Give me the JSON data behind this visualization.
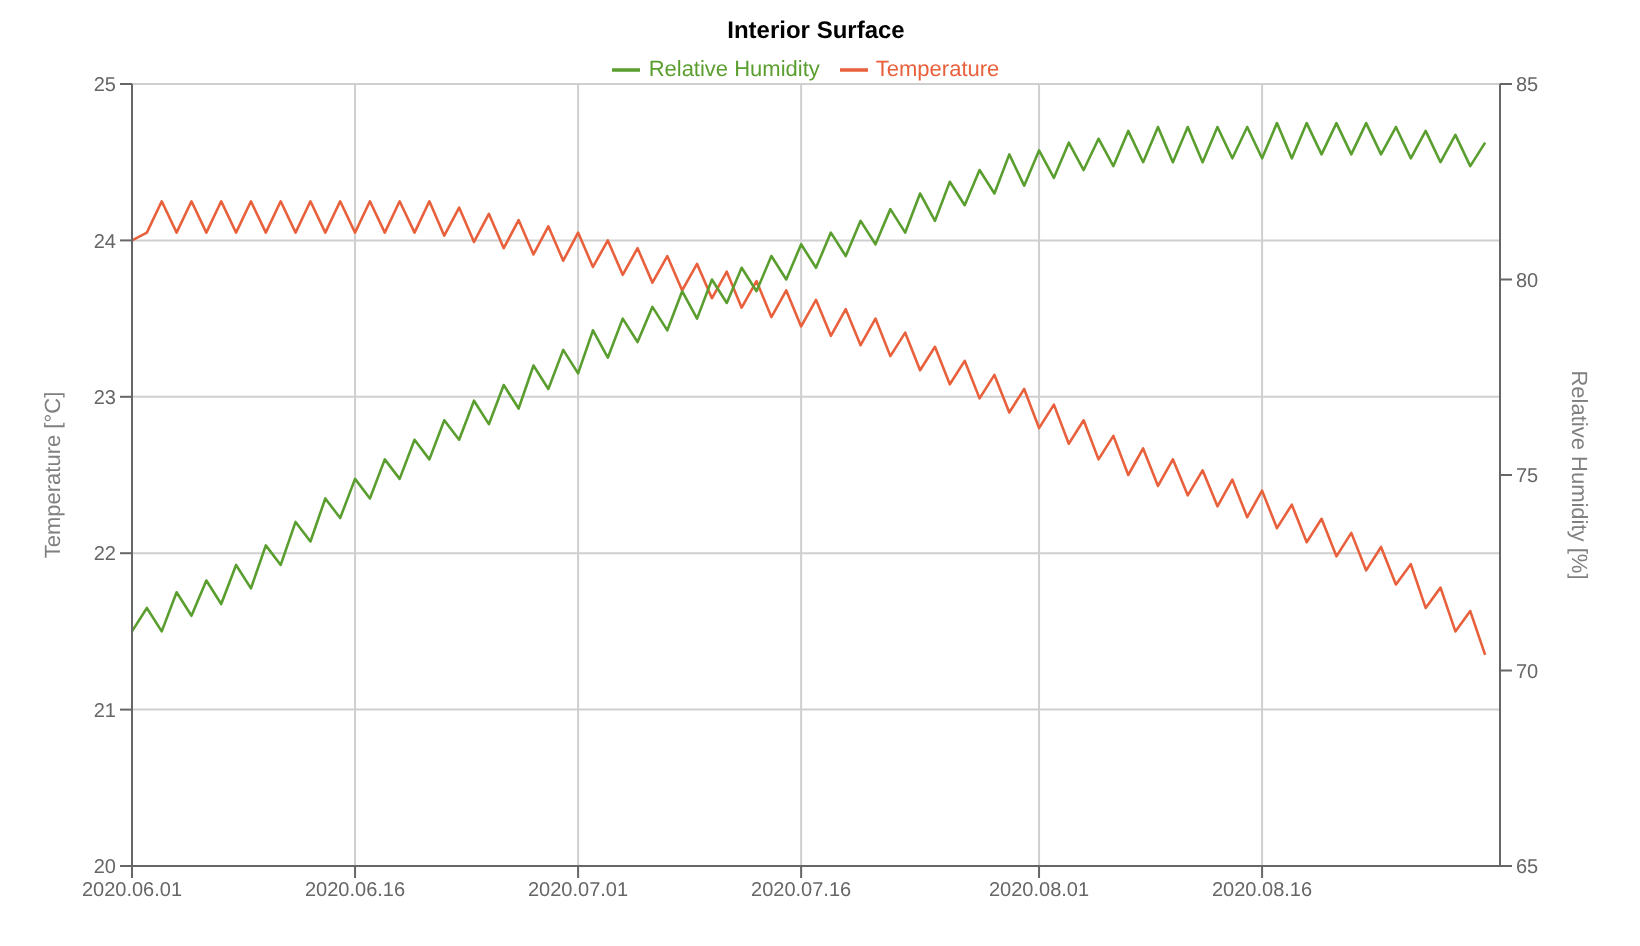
{
  "chart_data": {
    "type": "line",
    "title": "Interior Surface",
    "ylabel": "Temperature [°C]",
    "y2label": "Relative Humidity [%]",
    "x": [
      "2020-06-01",
      "2020-06-02",
      "2020-06-03",
      "2020-06-04",
      "2020-06-05",
      "2020-06-06",
      "2020-06-07",
      "2020-06-08",
      "2020-06-09",
      "2020-06-10",
      "2020-06-11",
      "2020-06-12",
      "2020-06-13",
      "2020-06-14",
      "2020-06-15",
      "2020-06-16",
      "2020-06-17",
      "2020-06-18",
      "2020-06-19",
      "2020-06-20",
      "2020-06-21",
      "2020-06-22",
      "2020-06-23",
      "2020-06-24",
      "2020-06-25",
      "2020-06-26",
      "2020-06-27",
      "2020-06-28",
      "2020-06-29",
      "2020-06-30",
      "2020-07-01",
      "2020-07-02",
      "2020-07-03",
      "2020-07-04",
      "2020-07-05",
      "2020-07-06",
      "2020-07-07",
      "2020-07-08",
      "2020-07-09",
      "2020-07-10",
      "2020-07-11",
      "2020-07-12",
      "2020-07-13",
      "2020-07-14",
      "2020-07-15",
      "2020-07-16",
      "2020-07-17",
      "2020-07-18",
      "2020-07-19",
      "2020-07-20",
      "2020-07-21",
      "2020-07-22",
      "2020-07-23",
      "2020-07-24",
      "2020-07-25",
      "2020-07-26",
      "2020-07-27",
      "2020-07-28",
      "2020-07-29",
      "2020-07-30",
      "2020-07-31",
      "2020-08-01",
      "2020-08-02",
      "2020-08-03",
      "2020-08-04",
      "2020-08-05",
      "2020-08-06",
      "2020-08-07",
      "2020-08-08",
      "2020-08-09",
      "2020-08-10",
      "2020-08-11",
      "2020-08-12",
      "2020-08-13",
      "2020-08-14",
      "2020-08-15",
      "2020-08-16",
      "2020-08-17",
      "2020-08-18",
      "2020-08-19",
      "2020-08-20",
      "2020-08-21",
      "2020-08-22",
      "2020-08-23",
      "2020-08-24",
      "2020-08-25",
      "2020-08-26",
      "2020-08-27",
      "2020-08-28",
      "2020-08-29",
      "2020-08-30",
      "2020-08-31"
    ],
    "series": [
      {
        "name": "Temperature",
        "color": "#e8603c",
        "values": [
          24.0,
          24.05,
          24.25,
          24.05,
          24.25,
          24.05,
          24.25,
          24.05,
          24.25,
          24.05,
          24.25,
          24.05,
          24.25,
          24.05,
          24.25,
          24.05,
          24.25,
          24.05,
          24.25,
          24.05,
          24.25,
          24.03,
          24.21,
          23.99,
          24.17,
          23.95,
          24.13,
          23.91,
          24.09,
          23.87,
          24.05,
          23.83,
          24.0,
          23.78,
          23.95,
          23.73,
          23.9,
          23.68,
          23.85,
          23.63,
          23.8,
          23.57,
          23.74,
          23.51,
          23.68,
          23.45,
          23.62,
          23.39,
          23.56,
          23.33,
          23.5,
          23.26,
          23.41,
          23.17,
          23.32,
          23.08,
          23.23,
          22.99,
          23.14,
          22.9,
          23.05,
          22.8,
          22.95,
          22.7,
          22.85,
          22.6,
          22.75,
          22.5,
          22.67,
          22.43,
          22.6,
          22.37,
          22.53,
          22.3,
          22.47,
          22.23,
          22.4,
          22.16,
          22.31,
          22.07,
          22.22,
          21.98,
          22.13,
          21.89,
          22.04,
          21.8,
          21.93,
          21.65,
          21.78,
          21.5,
          21.63,
          21.35
        ]
      },
      {
        "name": "Relative Humidity",
        "color": "#5a9e2f",
        "axis": "y2",
        "values": [
          71.0,
          71.6,
          71.0,
          72.0,
          71.4,
          72.3,
          71.7,
          72.7,
          72.1,
          73.2,
          72.7,
          73.8,
          73.3,
          74.4,
          73.9,
          74.9,
          74.4,
          75.4,
          74.9,
          75.9,
          75.4,
          76.4,
          75.9,
          76.9,
          76.3,
          77.3,
          76.7,
          77.8,
          77.2,
          78.2,
          77.6,
          78.7,
          78.0,
          79.0,
          78.4,
          79.3,
          78.7,
          79.7,
          79.0,
          80.0,
          79.4,
          80.3,
          79.7,
          80.6,
          80.0,
          80.9,
          80.3,
          81.2,
          80.6,
          81.5,
          80.9,
          81.8,
          81.2,
          82.2,
          81.5,
          82.5,
          81.9,
          82.8,
          82.2,
          83.2,
          82.4,
          83.3,
          82.6,
          83.5,
          82.8,
          83.6,
          82.9,
          83.8,
          83.0,
          83.9,
          83.0,
          83.9,
          83.0,
          83.9,
          83.1,
          83.9,
          83.1,
          84.0,
          83.1,
          84.0,
          83.2,
          84.0,
          83.2,
          84.0,
          83.2,
          83.9,
          83.1,
          83.8,
          83.0,
          83.7,
          82.9,
          83.5
        ]
      }
    ],
    "xlim": [
      "2020-06-01",
      "2020-09-01"
    ],
    "xticks": [
      {
        "value": "2020-06-01",
        "label": "2020.06.01"
      },
      {
        "value": "2020-06-16",
        "label": "2020.06.16"
      },
      {
        "value": "2020-07-01",
        "label": "2020.07.01"
      },
      {
        "value": "2020-07-16",
        "label": "2020.07.16"
      },
      {
        "value": "2020-08-01",
        "label": "2020.08.01"
      },
      {
        "value": "2020-08-16",
        "label": "2020.08.16"
      }
    ],
    "ylim": [
      20,
      25
    ],
    "yticks": [
      20,
      21,
      22,
      23,
      24,
      25
    ],
    "y2lim": [
      65,
      85
    ],
    "y2ticks": [
      65,
      70,
      75,
      80,
      85
    ],
    "grid": true,
    "legend": "top"
  }
}
